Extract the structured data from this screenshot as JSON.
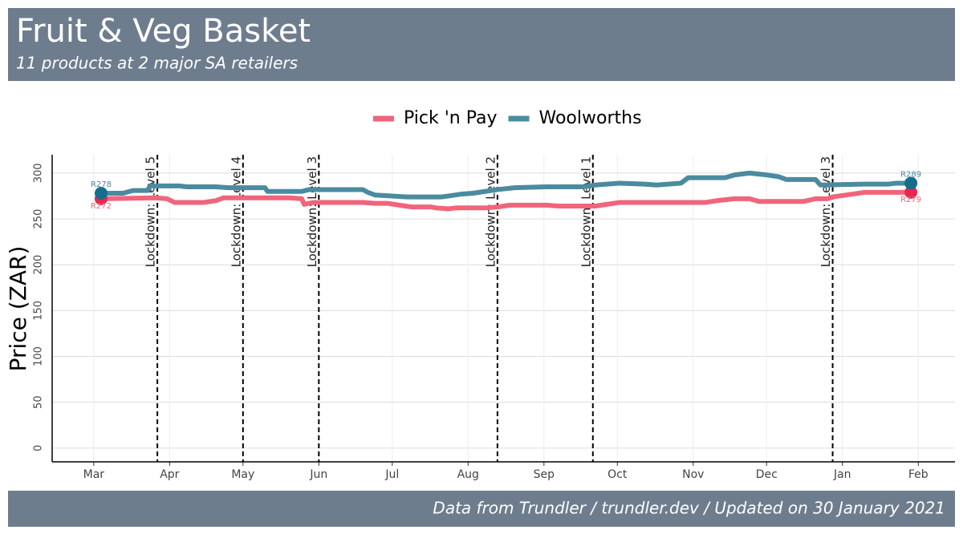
{
  "chart_data": {
    "type": "line",
    "title": "Fruit & Veg Basket",
    "subtitle": "11 products at 2 major SA retailers",
    "y_label": "Price (ZAR)",
    "caption": "Data from Trundler / trundler.dev / Updated on 30 January 2021",
    "legend": "top",
    "grid": true,
    "xlim": [
      -17,
      352
    ],
    "xticks": [
      {
        "value": 0,
        "label": "Mar"
      },
      {
        "value": 31,
        "label": "Apr"
      },
      {
        "value": 61,
        "label": "May"
      },
      {
        "value": 92,
        "label": "Jun"
      },
      {
        "value": 122,
        "label": "Jul"
      },
      {
        "value": 153,
        "label": "Aug"
      },
      {
        "value": 184,
        "label": "Sep"
      },
      {
        "value": 214,
        "label": "Oct"
      },
      {
        "value": 245,
        "label": "Nov"
      },
      {
        "value": 275,
        "label": "Dec"
      },
      {
        "value": 306,
        "label": "Jan"
      },
      {
        "value": 337,
        "label": "Feb"
      }
    ],
    "ylim": [
      -15,
      320
    ],
    "yticks": [
      0,
      50,
      100,
      150,
      200,
      250,
      300
    ],
    "annotations": [
      {
        "x": 26,
        "label": "Lockdown: Level 5"
      },
      {
        "x": 61,
        "label": "Lockdown: Level 4"
      },
      {
        "x": 92,
        "label": "Lockdown: Level 3"
      },
      {
        "x": 165,
        "label": "Lockdown: Level 2"
      },
      {
        "x": 204,
        "label": "Lockdown: Level 1"
      },
      {
        "x": 302,
        "label": "Lockdown: Level 3"
      }
    ],
    "series": [
      {
        "name": "Pick 'n Pay",
        "color": "#f0657c",
        "point_color": "#e8274f",
        "start_label": "R272",
        "end_label": "R279",
        "x": [
          3,
          25,
          30,
          33,
          45,
          50,
          53,
          80,
          85,
          86,
          90,
          110,
          115,
          120,
          125,
          130,
          138,
          140,
          145,
          148,
          160,
          165,
          170,
          185,
          190,
          205,
          210,
          215,
          250,
          255,
          262,
          268,
          272,
          290,
          295,
          300,
          302,
          310,
          315,
          334
        ],
        "values": [
          272,
          273,
          272,
          268,
          268,
          270,
          273,
          273,
          272,
          266,
          268,
          268,
          267,
          267,
          265,
          263,
          263,
          262,
          261,
          262,
          262,
          263,
          265,
          265,
          264,
          264,
          266,
          268,
          268,
          270,
          272,
          272,
          269,
          269,
          272,
          272,
          274,
          277,
          279,
          279
        ]
      },
      {
        "name": "Woolworths",
        "color": "#4a8ba0",
        "point_color": "#176d8c",
        "start_label": "R278",
        "end_label": "R289",
        "x": [
          3,
          12,
          16,
          22,
          23,
          35,
          38,
          50,
          55,
          70,
          71,
          85,
          88,
          110,
          112,
          115,
          122,
          128,
          142,
          145,
          150,
          155,
          160,
          165,
          172,
          185,
          200,
          205,
          215,
          225,
          230,
          240,
          243,
          258,
          262,
          268,
          275,
          280,
          283,
          295,
          297,
          315,
          325,
          328,
          334
        ],
        "values": [
          278,
          278,
          281,
          281,
          286,
          286,
          285,
          285,
          284,
          284,
          280,
          280,
          282,
          282,
          279,
          276,
          275,
          274,
          274,
          275,
          277,
          278,
          280,
          282,
          284,
          285,
          285,
          287,
          289,
          288,
          287,
          289,
          295,
          295,
          298,
          300,
          298,
          296,
          293,
          293,
          287,
          288,
          288,
          289,
          289
        ]
      }
    ]
  }
}
